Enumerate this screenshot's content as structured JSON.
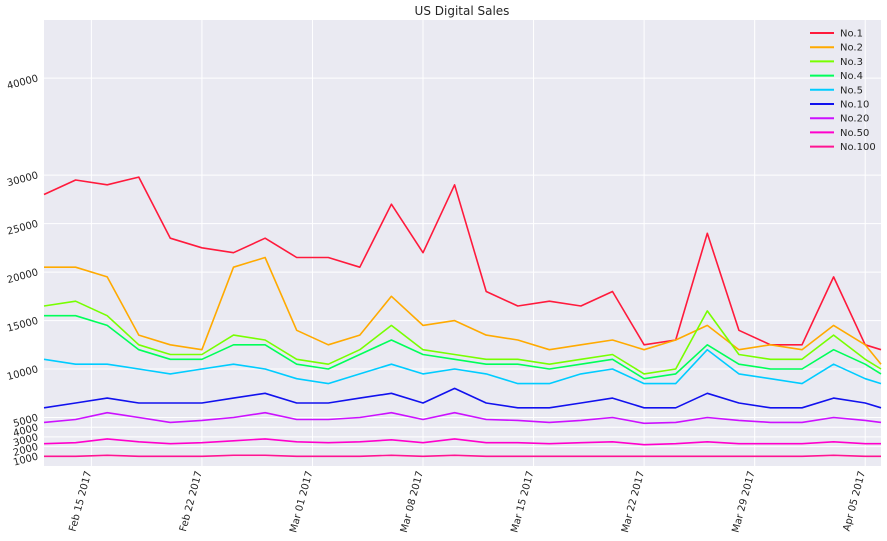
{
  "chart_data": {
    "type": "line",
    "title": "US Digital Sales",
    "xlabel": "",
    "ylabel": "",
    "x_range": [
      "2017-02-12",
      "2017-04-06"
    ],
    "y_range": [
      0,
      46000
    ],
    "x_ticks": [
      "Feb 15 2017",
      "Feb 22 2017",
      "Mar 01 2017",
      "Mar 08 2017",
      "Mar 15 2017",
      "Mar 22 2017",
      "Mar 29 2017",
      "Apr 05 2017"
    ],
    "y_ticks": [
      1000,
      2000,
      3000,
      4000,
      5000,
      10000,
      15000,
      20000,
      25000,
      30000,
      40000
    ],
    "grid": true,
    "background": "#eaeaf2",
    "legend_position": "top-right",
    "x": [
      "2017-02-12",
      "2017-02-14",
      "2017-02-16",
      "2017-02-18",
      "2017-02-20",
      "2017-02-22",
      "2017-02-24",
      "2017-02-26",
      "2017-02-28",
      "2017-03-02",
      "2017-03-04",
      "2017-03-06",
      "2017-03-08",
      "2017-03-10",
      "2017-03-12",
      "2017-03-14",
      "2017-03-16",
      "2017-03-18",
      "2017-03-20",
      "2017-03-22",
      "2017-03-24",
      "2017-03-26",
      "2017-03-28",
      "2017-03-30",
      "2017-04-01",
      "2017-04-03",
      "2017-04-05",
      "2017-04-06"
    ],
    "series": [
      {
        "name": "No.1",
        "color": "#ff1a3c",
        "values": [
          28000,
          29500,
          29000,
          29800,
          23500,
          22500,
          22000,
          23500,
          21500,
          21500,
          20500,
          27000,
          22000,
          29000,
          18000,
          16500,
          17000,
          16500,
          18000,
          12500,
          13000,
          24000,
          14000,
          12500,
          12500,
          19500,
          12500,
          12000
        ]
      },
      {
        "name": "No.2",
        "color": "#ffaa00",
        "values": [
          20500,
          20500,
          19500,
          13500,
          12500,
          12000,
          20500,
          21500,
          14000,
          12500,
          13500,
          17500,
          14500,
          15000,
          13500,
          13000,
          12000,
          12500,
          13000,
          12000,
          13000,
          14500,
          12000,
          12500,
          12000,
          14500,
          12500,
          10500
        ]
      },
      {
        "name": "No.3",
        "color": "#77ff00",
        "values": [
          16500,
          17000,
          15500,
          12500,
          11500,
          11500,
          13500,
          13000,
          11000,
          10500,
          12000,
          14500,
          12000,
          11500,
          11000,
          11000,
          10500,
          11000,
          11500,
          9500,
          10000,
          16000,
          11500,
          11000,
          11000,
          13500,
          11000,
          10000
        ]
      },
      {
        "name": "No.4",
        "color": "#00ff5a",
        "values": [
          15500,
          15500,
          14500,
          12000,
          11000,
          11000,
          12500,
          12500,
          10500,
          10000,
          11500,
          13000,
          11500,
          11000,
          10500,
          10500,
          10000,
          10500,
          11000,
          9000,
          9500,
          12500,
          10500,
          10000,
          10000,
          12000,
          10500,
          9500
        ]
      },
      {
        "name": "No.5",
        "color": "#00ccff",
        "values": [
          11000,
          10500,
          10500,
          10000,
          9500,
          10000,
          10500,
          10000,
          9000,
          8500,
          9500,
          10500,
          9500,
          10000,
          9500,
          8500,
          8500,
          9500,
          10000,
          8500,
          8500,
          12000,
          9500,
          9000,
          8500,
          10500,
          9000,
          8500
        ]
      },
      {
        "name": "No.10",
        "color": "#1111ee",
        "values": [
          6000,
          6500,
          7000,
          6500,
          6500,
          6500,
          7000,
          7500,
          6500,
          6500,
          7000,
          7500,
          6500,
          8000,
          6500,
          6000,
          6000,
          6500,
          7000,
          6000,
          6000,
          7500,
          6500,
          6000,
          6000,
          7000,
          6500,
          6000
        ]
      },
      {
        "name": "No.20",
        "color": "#cc11ff",
        "values": [
          4500,
          4800,
          5500,
          5000,
          4500,
          4700,
          5000,
          5500,
          4800,
          4800,
          5000,
          5500,
          4800,
          5500,
          4800,
          4700,
          4500,
          4700,
          5000,
          4400,
          4500,
          5000,
          4700,
          4500,
          4500,
          5000,
          4700,
          4500
        ]
      },
      {
        "name": "No.50",
        "color": "#ff00cc",
        "values": [
          2300,
          2400,
          2800,
          2500,
          2300,
          2400,
          2600,
          2800,
          2500,
          2400,
          2500,
          2700,
          2400,
          2800,
          2400,
          2400,
          2300,
          2400,
          2500,
          2200,
          2300,
          2500,
          2300,
          2300,
          2300,
          2500,
          2300,
          2300
        ]
      },
      {
        "name": "No.100",
        "color": "#ff1493",
        "values": [
          1000,
          1000,
          1100,
          1000,
          1000,
          1000,
          1100,
          1100,
          1000,
          1000,
          1000,
          1100,
          1000,
          1100,
          1000,
          1000,
          1000,
          1000,
          1000,
          1000,
          1000,
          1000,
          1000,
          1000,
          1000,
          1100,
          1000,
          1000
        ]
      }
    ]
  }
}
